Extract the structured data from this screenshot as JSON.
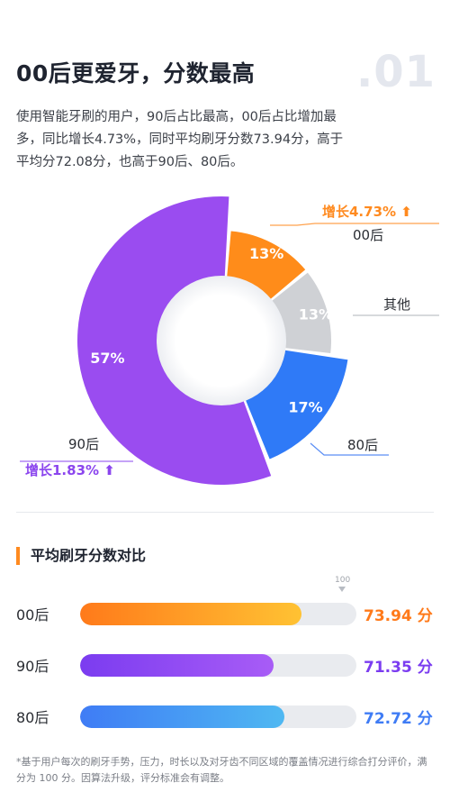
{
  "header": {
    "title": "00后更爱牙，分数最高",
    "index": ".01",
    "description": "使用智能牙刷的用户，90后占比最高，00后占比增加最多，同比增长4.73%，同时平均刷牙分数73.94分，高于平均分72.08分，也高于90后、80后。"
  },
  "chart_data": [
    {
      "type": "pie",
      "categories": [
        "00后",
        "其他",
        "80后",
        "90后"
      ],
      "values": [
        13,
        13,
        17,
        57
      ],
      "value_labels": [
        "13%",
        "13%",
        "17%",
        "57%"
      ],
      "colors": [
        "#ff8c1a",
        "#cfd1d5",
        "#2f7af7",
        "#9a4cf0"
      ],
      "annotations": [
        {
          "category": "00后",
          "text": "增长4.73% ⬆",
          "color": "#ff8a1f"
        },
        {
          "category": "90后",
          "text": "增长1.83% ⬆",
          "color": "#8b45ee"
        }
      ]
    },
    {
      "type": "bar",
      "title": "平均刷牙分数对比",
      "categories": [
        "00后",
        "90后",
        "80后"
      ],
      "values": [
        73.94,
        71.35,
        72.72
      ],
      "value_labels": [
        "73.94 分",
        "71.35 分",
        "72.72 分"
      ],
      "xlim_max_label": "100",
      "colors": [
        [
          "#ff7a1a",
          "#ffc233"
        ],
        [
          "#7b3cf0",
          "#a85cf6"
        ],
        [
          "#3f7cf5",
          "#4fb8f2"
        ]
      ],
      "fill_fractions": [
        0.8,
        0.7,
        0.74
      ]
    }
  ],
  "footnote": "*基于用户每次的刷牙手势，压力，时长以及对牙齿不同区域的覆盖情况进行综合打分评价，满分为 100 分。因算法升级，评分标准会有调整。"
}
